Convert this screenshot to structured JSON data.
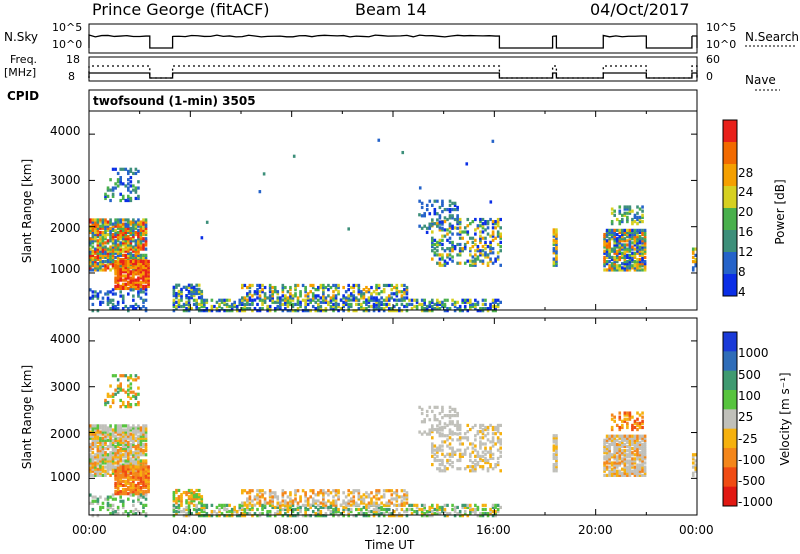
{
  "header": {
    "station": "Prince George (fitACF)",
    "beam": "Beam 14",
    "date": "04/Oct/2017"
  },
  "top_panels": {
    "nsky_label": "N.Sky",
    "nsky_ticks": [
      "10^5",
      "10^0"
    ],
    "nsearch_label": "N.Search",
    "nsearch_ticks": [
      "10^5",
      "10^0"
    ],
    "freq_label": "Freq.",
    "freq_unit": "[MHz]",
    "freq_ticks": [
      "18",
      "8"
    ],
    "nave_label": "Nave",
    "nave_ticks": [
      "60",
      "0"
    ],
    "cpid_label": "CPID",
    "cpid_value": "twofsound (1-min) 3505"
  },
  "chart_data": [
    {
      "type": "heatmap",
      "name": "power",
      "ylabel": "Slant Range [km]",
      "xlabel": "Time UT",
      "ylim": [
        200,
        4500
      ],
      "xlim": [
        0,
        24
      ],
      "yticks": [
        "1000",
        "2000",
        "3000",
        "4000"
      ],
      "xticks": [
        "00:00",
        "04:00",
        "08:00",
        "12:00",
        "16:00",
        "20:00",
        "00:00"
      ],
      "colorbar": {
        "label": "Power [dB]",
        "ticks": [
          "4",
          "8",
          "12",
          "16",
          "20",
          "24",
          "28"
        ],
        "colors": [
          "#0a2ee6",
          "#2563c9",
          "#3d8f7a",
          "#49b04c",
          "#d6d021",
          "#f5a000",
          "#f26a00",
          "#e8201a"
        ]
      },
      "data_intervals_hours": [
        [
          0,
          2.4
        ],
        [
          3.3,
          16.2
        ],
        [
          18.3,
          18.45
        ],
        [
          20.3,
          22
        ],
        [
          23.8,
          24
        ]
      ]
    },
    {
      "type": "heatmap",
      "name": "velocity",
      "ylabel": "Slant Range [km]",
      "xlabel": "Time UT",
      "ylim": [
        200,
        4500
      ],
      "xlim": [
        0,
        24
      ],
      "yticks": [
        "1000",
        "2000",
        "3000",
        "4000"
      ],
      "xticks": [
        "00:00",
        "04:00",
        "08:00",
        "12:00",
        "16:00",
        "20:00",
        "00:00"
      ],
      "colorbar": {
        "label": "Velocity [m s⁻¹]",
        "ticks": [
          "1000",
          "500",
          "100",
          "25",
          "-25",
          "-100",
          "-500",
          "-1000"
        ],
        "colors": [
          "#1a3ad8",
          "#2f6db8",
          "#3f9a70",
          "#57c43e",
          "#c0c0ba",
          "#f6b10e",
          "#f4861a",
          "#f04b13",
          "#e11812"
        ]
      },
      "data_intervals_hours": [
        [
          0,
          2.4
        ],
        [
          3.3,
          16.2
        ],
        [
          18.3,
          18.45
        ],
        [
          20.3,
          22
        ],
        [
          23.8,
          24
        ]
      ]
    }
  ]
}
